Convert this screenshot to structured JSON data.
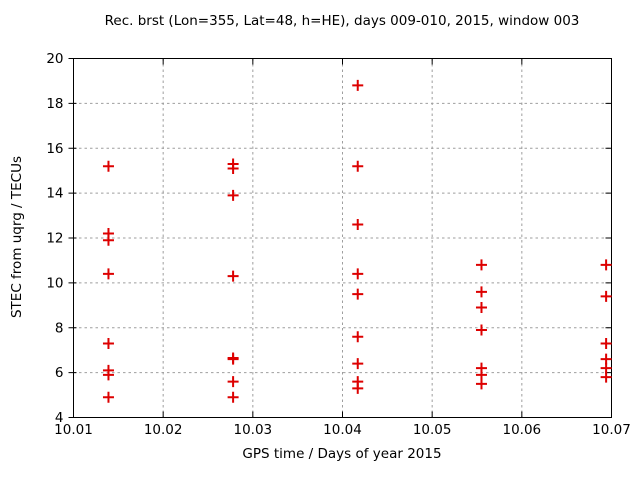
{
  "chart_data": {
    "type": "scatter",
    "title": "Rec. brst (Lon=355, Lat=48, h=HE), days 009-010, 2015, window 003",
    "xlabel": "GPS time / Days of year 2015",
    "ylabel": "STEC from uqrg / TECUs",
    "xlim": [
      10.01,
      10.07
    ],
    "ylim": [
      4,
      20
    ],
    "xticks": [
      10.01,
      10.02,
      10.03,
      10.04,
      10.05,
      10.06,
      10.07
    ],
    "xtick_labels": [
      "10.01",
      "10.02",
      "10.03",
      "10.04",
      "10.05",
      "10.06",
      "10.07"
    ],
    "yticks": [
      4,
      6,
      8,
      10,
      12,
      14,
      16,
      18,
      20
    ],
    "ytick_labels": [
      "4",
      "6",
      "8",
      "10",
      "12",
      "14",
      "16",
      "18",
      "20"
    ],
    "grid": true,
    "legend": "none",
    "marker": {
      "shape": "plus",
      "size": 11,
      "stroke_width": 2
    },
    "colors": {
      "marker": "#dd0000",
      "grid": "#9e9e9e",
      "axis": "#000000",
      "background": "#ffffff"
    },
    "series": [
      {
        "name": "STEC",
        "color": "#dd0000",
        "points": [
          [
            10.0139,
            15.2
          ],
          [
            10.0139,
            12.2
          ],
          [
            10.0139,
            11.9
          ],
          [
            10.0139,
            10.4
          ],
          [
            10.0139,
            7.3
          ],
          [
            10.0139,
            6.1
          ],
          [
            10.0139,
            5.9
          ],
          [
            10.0139,
            4.9
          ],
          [
            10.0278,
            15.3
          ],
          [
            10.0278,
            15.1
          ],
          [
            10.0278,
            13.9
          ],
          [
            10.0278,
            10.3
          ],
          [
            10.0278,
            6.65
          ],
          [
            10.0278,
            6.6
          ],
          [
            10.0278,
            5.6
          ],
          [
            10.0278,
            4.9
          ],
          [
            10.0417,
            18.8
          ],
          [
            10.0417,
            15.2
          ],
          [
            10.0417,
            12.6
          ],
          [
            10.0417,
            10.4
          ],
          [
            10.0417,
            9.5
          ],
          [
            10.0417,
            7.6
          ],
          [
            10.0417,
            6.4
          ],
          [
            10.0417,
            5.6
          ],
          [
            10.0417,
            5.3
          ],
          [
            10.0555,
            10.8
          ],
          [
            10.0555,
            9.6
          ],
          [
            10.0555,
            8.9
          ],
          [
            10.0555,
            7.9
          ],
          [
            10.0555,
            6.2
          ],
          [
            10.0555,
            5.9
          ],
          [
            10.0555,
            5.5
          ],
          [
            10.0694,
            10.8
          ],
          [
            10.0694,
            9.4
          ],
          [
            10.0694,
            7.3
          ],
          [
            10.0694,
            6.6
          ],
          [
            10.0694,
            6.2
          ],
          [
            10.0694,
            5.8
          ]
        ]
      }
    ]
  }
}
